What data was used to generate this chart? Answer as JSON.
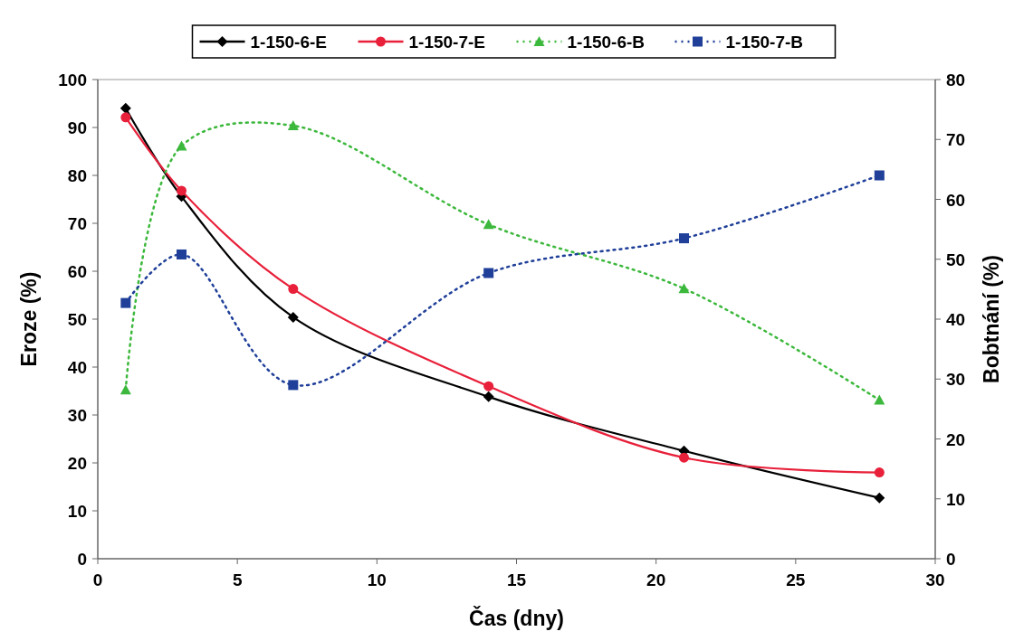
{
  "chart_data": {
    "type": "line",
    "xlabel": "Čas (dny)",
    "ylabel": "Eroze (%)",
    "y2label": "Bobtnání (%)",
    "x": [
      1,
      3,
      7,
      14,
      21,
      28
    ],
    "series": [
      {
        "name": "1-150-6-E",
        "color": "#000000",
        "marker": "diamond",
        "line_style": "solid",
        "values": [
          94,
          75.6,
          50.4,
          33.8,
          22.5,
          12.7
        ]
      },
      {
        "name": "1-150-7-E",
        "color": "#e8203a",
        "marker": "circle",
        "line_style": "solid",
        "values": [
          92.1,
          76.8,
          56.3,
          36,
          21.1,
          18
        ]
      },
      {
        "name": "1-150-6-B",
        "color": "#3cb83c",
        "marker": "triangle",
        "line_style": "dotted",
        "axis": "y2",
        "values": [
          28.2,
          68.9,
          72.3,
          55.8,
          45.1,
          26.5
        ]
      },
      {
        "name": "1-150-7-B",
        "color": "#1f3f99",
        "marker": "square",
        "line_style": "dotted",
        "axis": "y2",
        "values": [
          42.7,
          50.8,
          29,
          47.7,
          53.5,
          64
        ]
      }
    ],
    "xlim": [
      0,
      30
    ],
    "xticks": [
      0,
      5,
      10,
      15,
      20,
      25,
      30
    ],
    "ylim": [
      0,
      100
    ],
    "yticks": [
      0,
      10,
      20,
      30,
      40,
      50,
      60,
      70,
      80,
      90,
      100
    ],
    "y2lim": [
      0,
      80
    ],
    "y2ticks": [
      0,
      10,
      20,
      30,
      40,
      50,
      60,
      70,
      80
    ],
    "grid": false,
    "legend": "top"
  }
}
